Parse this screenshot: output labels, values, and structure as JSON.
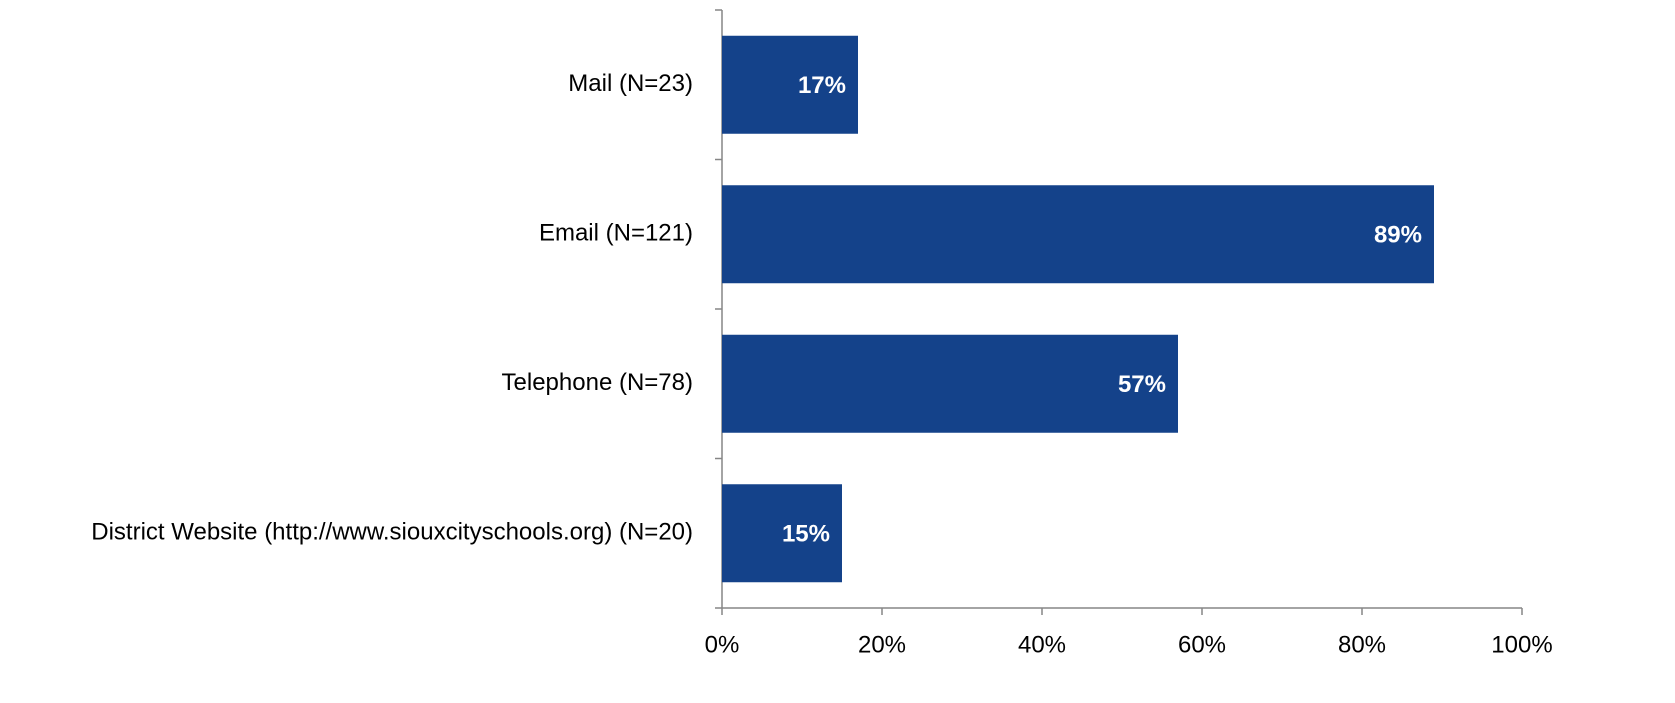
{
  "chart_data": {
    "type": "bar",
    "orientation": "horizontal",
    "categories": [
      "Mail (N=23)",
      "Email (N=121)",
      "Telephone (N=78)",
      "District Website (http://www.siouxcityschools.org) (N=20)"
    ],
    "values": [
      17,
      89,
      57,
      15
    ],
    "value_labels": [
      "17%",
      "89%",
      "57%",
      "15%"
    ],
    "color": "#14428a",
    "xlim": [
      0,
      100
    ],
    "xticks": [
      {
        "value": 0,
        "label": "0%"
      },
      {
        "value": 20,
        "label": "20%"
      },
      {
        "value": 40,
        "label": "40%"
      },
      {
        "value": 60,
        "label": "60%"
      },
      {
        "value": 80,
        "label": "80%"
      },
      {
        "value": 100,
        "label": "100%"
      }
    ],
    "grid": false
  }
}
